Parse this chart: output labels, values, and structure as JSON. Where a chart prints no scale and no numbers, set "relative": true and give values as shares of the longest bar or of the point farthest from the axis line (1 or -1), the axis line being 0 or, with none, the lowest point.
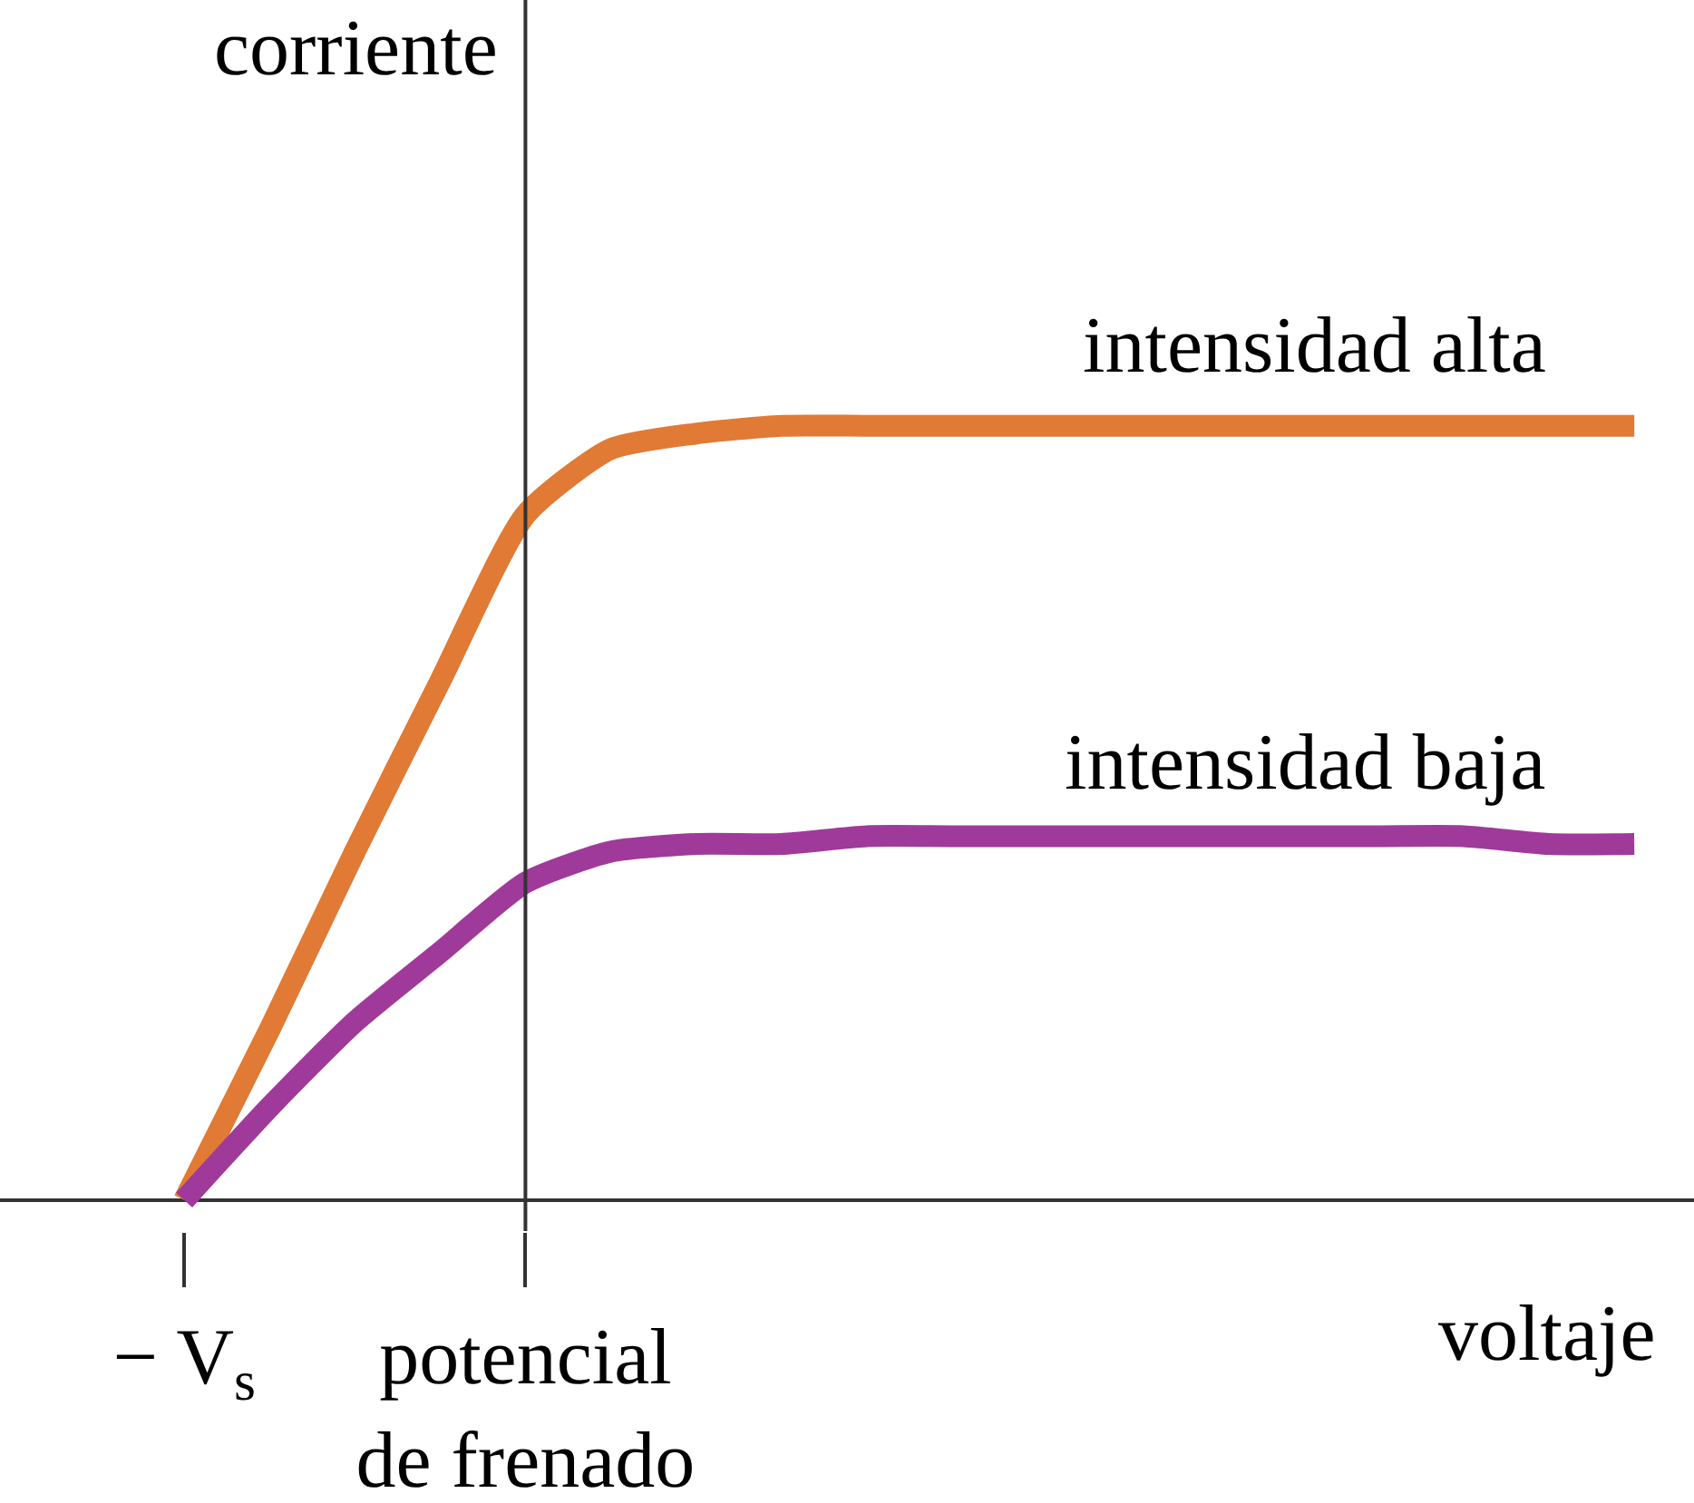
{
  "chart_data": {
    "type": "line",
    "relative": true,
    "xlabel": "voltaje",
    "ylabel": "corriente",
    "categories": [
      null,
      null,
      "− V$_{s}$",
      null,
      null,
      null,
      "potencial\nde frenado",
      null,
      null,
      null,
      null,
      null,
      null,
      null,
      null,
      null,
      null,
      null,
      null,
      null
    ],
    "series": [
      {
        "name": "intensidad alta",
        "color": "#e07a35",
        "values": [
          null,
          null,
          0,
          0.22,
          0.45,
          0.67,
          0.885,
          0.97,
          0.99,
          1,
          1,
          1,
          1,
          1,
          1,
          1,
          1,
          1,
          1,
          1
        ]
      },
      {
        "name": "intensidad baja",
        "color": "#a03a9a",
        "values": [
          null,
          null,
          0,
          0.12,
          0.23,
          0.32,
          0.41,
          0.45,
          0.46,
          0.46,
          0.47,
          0.47,
          0.47,
          0.47,
          0.47,
          0.47,
          0.47,
          0.47,
          0.46,
          0.46
        ]
      }
    ],
    "ref_lines": [
      {
        "axis": "x",
        "value": "potencial\nde frenado"
      }
    ],
    "grid": false,
    "legend": false,
    "marker": "none",
    "line_style": "solid"
  }
}
